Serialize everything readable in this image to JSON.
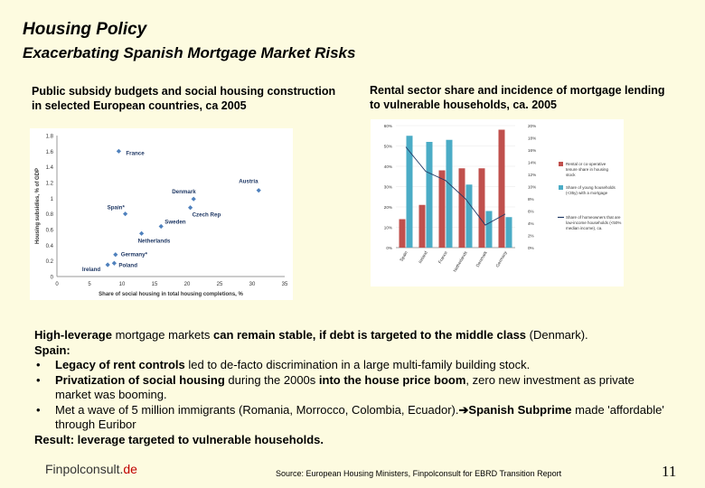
{
  "header": {
    "title": "Housing Policy",
    "subtitle": "Exacerbating Spanish Mortgage Market Risks"
  },
  "left_caption": "Public subsidy budgets and social housing construction in selected European countries, ca 2005",
  "right_caption": "Rental sector share and incidence of mortgage lending to vulnerable households, ca. 2005",
  "chart_data": [
    {
      "type": "scatter",
      "xlabel": "Share of social housing in total housing completions, %",
      "ylabel": "Housing subsidies, % of GDP",
      "xlim": [
        0,
        35
      ],
      "ylim": [
        0,
        1.8
      ],
      "xticks": [
        "0",
        "5",
        "10",
        "15",
        "20",
        "25",
        "30",
        "35"
      ],
      "yticks": [
        "0",
        "0.2",
        "0.4",
        "0.6",
        "0.8",
        "1",
        "1.2",
        "1.4",
        "1.6",
        "1.8"
      ],
      "point_color": "#4f81bd",
      "points": [
        {
          "label": "France",
          "x": 9.5,
          "y": 1.6
        },
        {
          "label": "Austria",
          "x": 31,
          "y": 1.1
        },
        {
          "label": "Denmark",
          "x": 21,
          "y": 0.99
        },
        {
          "label": "Czech Rep",
          "x": 20.5,
          "y": 0.88
        },
        {
          "label": "Spain*",
          "x": 10.5,
          "y": 0.8
        },
        {
          "label": "Sweden",
          "x": 16,
          "y": 0.64
        },
        {
          "label": "Netherlands",
          "x": 13,
          "y": 0.55
        },
        {
          "label": "Germany*",
          "x": 9,
          "y": 0.28
        },
        {
          "label": "Poland",
          "x": 8.8,
          "y": 0.17
        },
        {
          "label": "Ireland",
          "x": 7.8,
          "y": 0.15
        }
      ]
    },
    {
      "type": "bar",
      "categories": [
        "Spain",
        "Ireland",
        "France",
        "Netherlands",
        "Denmark",
        "Germany"
      ],
      "yticks_left": [
        "0%",
        "10%",
        "20%",
        "30%",
        "40%",
        "50%",
        "60%"
      ],
      "yticks_right": [
        "0%",
        "2%",
        "4%",
        "6%",
        "8%",
        "10%",
        "12%",
        "14%",
        "16%",
        "18%",
        "20%"
      ],
      "ylim_left": [
        0,
        60
      ],
      "ylim_right": [
        0,
        20
      ],
      "series": [
        {
          "name": "Rental or co-operative tenure share in housing stock",
          "color": "#c0504d",
          "values": [
            14,
            21,
            38,
            39,
            39,
            58
          ]
        },
        {
          "name": "Share of young households (<35y) with a mortgage",
          "color": "#4bacc6",
          "values": [
            55,
            52,
            53,
            31,
            18,
            15
          ]
        },
        {
          "name": "Share of homeowners that are low-income households (<50% median income), ca.",
          "color": "#1f3864",
          "values": [
            16.5,
            12.5,
            11,
            8,
            3.7,
            5.5
          ]
        }
      ]
    }
  ],
  "body": {
    "intro_bold1": "High-leverage",
    "intro_normal1": " mortgage markets ",
    "intro_bold2": "can remain stable, if debt is targeted to the middle class",
    "intro_normal2": " (Denmark).",
    "spain_label": "Spain:",
    "bullets": [
      {
        "bold": "Legacy of rent controls",
        "text": " led to de-facto discrimination in a large multi-family building stock."
      },
      {
        "bold": "Privatization of social housing",
        "text": " during the 2000s ",
        "bold2": "into the house price boom",
        "text2": ", zero new investment as private market was booming."
      },
      {
        "text": "Met a wave of 5 million immigrants (Romania, Morrocco, Colombia, Ecuador).",
        "arrow": "➔",
        "bold": "Spanish Subprime",
        "text2": " made 'affordable' through Euribor"
      }
    ],
    "result": "Result: leverage targeted to vulnerable households."
  },
  "footer": {
    "brand_name": "Finpolconsult.",
    "brand_tld": "de",
    "source": "Source: European Housing Ministers, Finpolconsult for EBRD Transition Report",
    "page_number": "11"
  }
}
